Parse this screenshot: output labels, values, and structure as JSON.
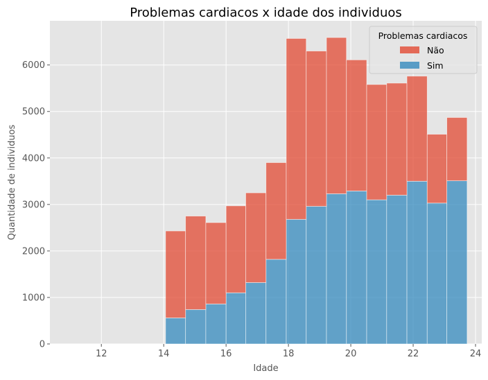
{
  "chart_data": {
    "type": "bar",
    "stacked": true,
    "title": "Problemas cardiacos x idade dos individuos",
    "xlabel": "Idade",
    "ylabel": "Quantidade de individuos",
    "xlim": [
      10.35,
      24.2
    ],
    "ylim": [
      0,
      6950
    ],
    "xticks": [
      12,
      14,
      16,
      18,
      20,
      22,
      24
    ],
    "yticks": [
      0,
      1000,
      2000,
      3000,
      4000,
      5000,
      6000
    ],
    "grid": true,
    "bin_edges": [
      10.77,
      11.41,
      12.05,
      12.69,
      13.41,
      14.06,
      14.7,
      15.35,
      16.0,
      16.63,
      17.28,
      17.93,
      18.57,
      19.22,
      19.86,
      20.51,
      21.15,
      21.8,
      22.45,
      23.08,
      23.73
    ],
    "legend": {
      "title": "Problemas cardiacos",
      "position": "top-right"
    },
    "series": [
      {
        "name": "Sim",
        "color": "#348ABD",
        "values": [
          0,
          0,
          0,
          0,
          0,
          560,
          740,
          860,
          1100,
          1320,
          1820,
          2680,
          2960,
          3230,
          3290,
          3100,
          3200,
          3500,
          3030,
          3510
        ]
      },
      {
        "name": "Não",
        "color": "#E24A33",
        "values": [
          0,
          0,
          0,
          0,
          0,
          1870,
          2010,
          1750,
          1870,
          1930,
          2080,
          3890,
          3340,
          3360,
          2820,
          2480,
          2410,
          2260,
          1480,
          1360
        ]
      }
    ],
    "totals": [
      0,
      0,
      0,
      0,
      0,
      2430,
      2750,
      2610,
      2970,
      3250,
      3900,
      6570,
      6300,
      6590,
      6110,
      5580,
      5610,
      5760,
      4510,
      4870
    ],
    "style": {
      "plot_background": "#E5E5E5",
      "grid_color": "#FFFFFF"
    }
  }
}
